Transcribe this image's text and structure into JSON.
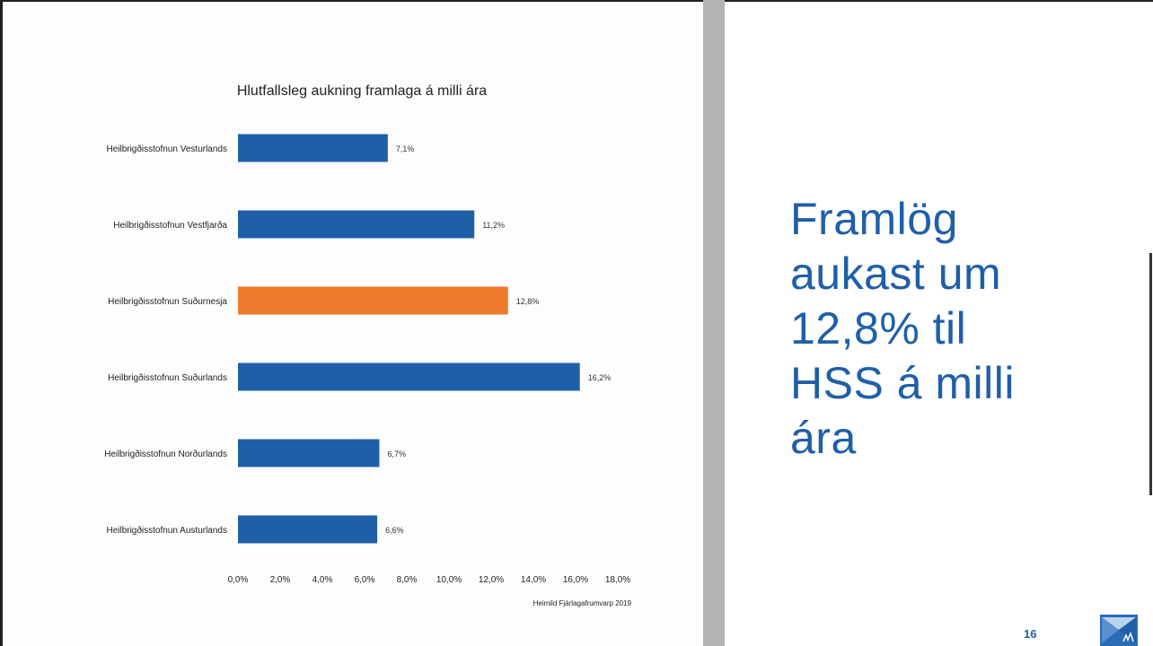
{
  "chart_data": {
    "type": "bar",
    "orientation": "horizontal",
    "title": "Hlutfallsleg aukning framlaga á milli ára",
    "categories": [
      "Heilbrigðisstofnun Vesturlands",
      "Heilbrigðisstofnun Vestfjarða",
      "Heilbrigðisstofnun Suðurnesja",
      "Heilbrigðisstofnun Suðurlands",
      "Heilbrigðisstofnun Norðurlands",
      "Heilbrigðisstofnun Austurlands"
    ],
    "values": [
      7.1,
      11.2,
      12.8,
      16.2,
      6.7,
      6.6
    ],
    "value_labels": [
      "7,1%",
      "11,2%",
      "12,8%",
      "16,2%",
      "6,7%",
      "6,6%"
    ],
    "highlight_index": 2,
    "xlim": [
      0,
      18
    ],
    "x_ticks": [
      "0,0%",
      "2,0%",
      "4,0%",
      "6,0%",
      "8,0%",
      "10,0%",
      "12,0%",
      "14,0%",
      "16,0%",
      "18,0%"
    ],
    "grid": false,
    "colors": {
      "bar": "#1f5fa8",
      "highlight": "#f07a2d"
    },
    "source_note": "Heimild Fjárlagafrumvarp 2019"
  },
  "slide": {
    "headline": "Framlög\naukast um\n12,8% til\nHSS á milli\nára",
    "page_number": "16",
    "logo_icon": "envelope-logo-icon"
  },
  "colors": {
    "accent": "#1f5fa8",
    "divider": "#b3b3b3"
  }
}
